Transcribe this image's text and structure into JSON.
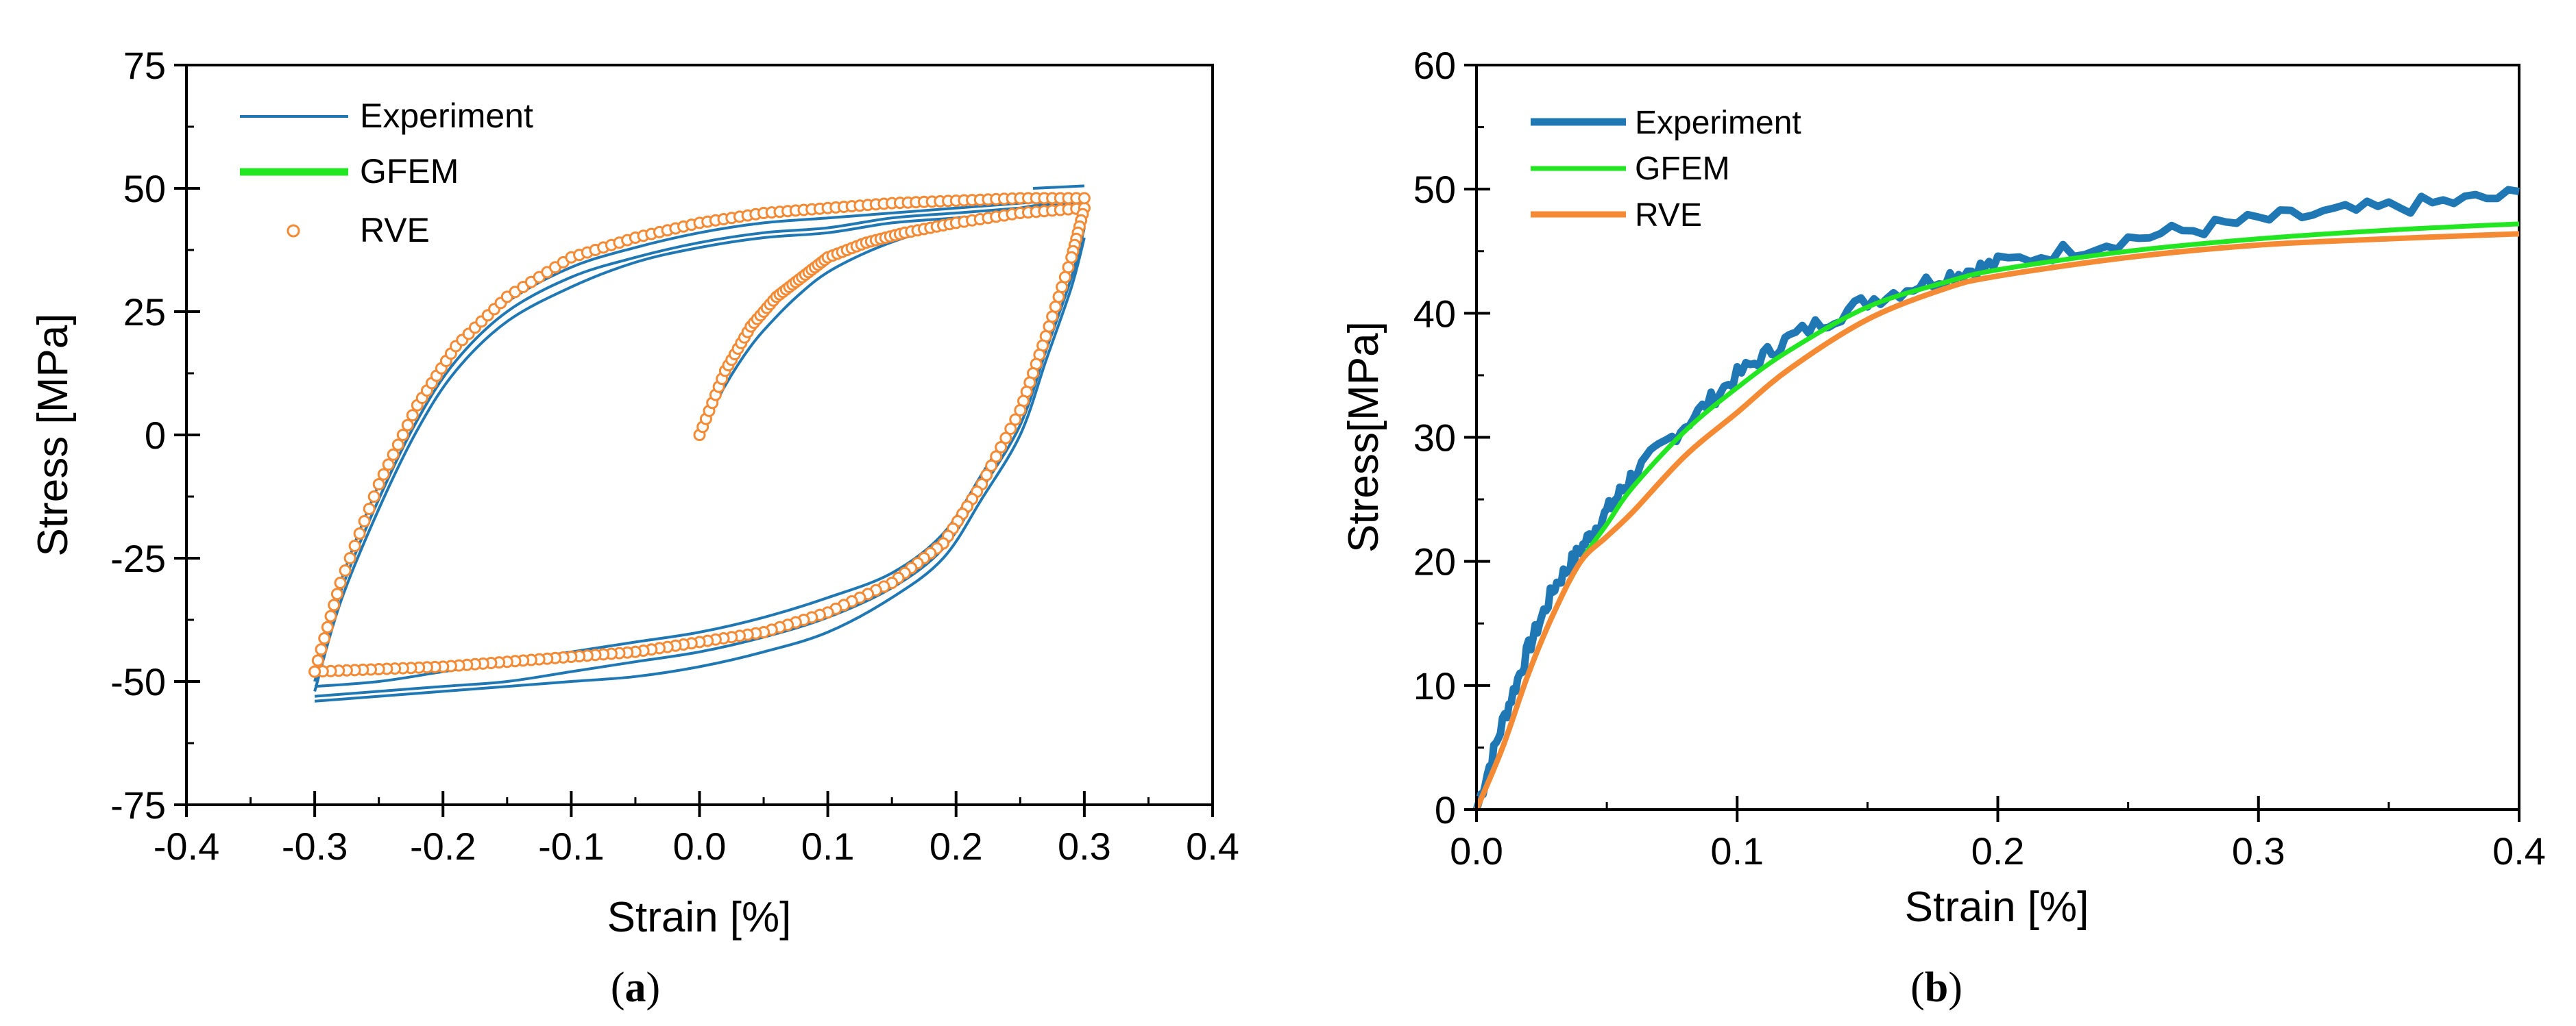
{
  "colors": {
    "experiment": "#1f77b4",
    "gfem": "#22e622",
    "rve": "#f58a35",
    "axis": "#000000",
    "background": "#ffffff"
  },
  "chart_data": [
    {
      "id": "a",
      "type": "line",
      "caption": "(a)",
      "caption_letter": "a",
      "xlabel": "Strain [%]",
      "ylabel": "Stress [MPa]",
      "xlim": [
        -0.4,
        0.4
      ],
      "ylim": [
        -75,
        75
      ],
      "xticks": [
        -0.4,
        -0.3,
        -0.2,
        -0.1,
        0.0,
        0.1,
        0.2,
        0.3,
        0.4
      ],
      "xtick_labels": [
        "-0.4",
        "-0.3",
        "-0.2",
        "-0.1",
        "0.0",
        "0.1",
        "0.2",
        "0.3",
        "0.4"
      ],
      "yticks": [
        -75,
        -50,
        -25,
        0,
        25,
        50,
        75
      ],
      "ytick_labels": [
        "-75",
        "-50",
        "-25",
        "0",
        "25",
        "50",
        "75"
      ],
      "legend": [
        "Experiment",
        "GFEM",
        "RVE"
      ],
      "legend_position": "top-left",
      "series": [
        {
          "name": "Experiment",
          "style": "thin-lines",
          "curves": [
            {
              "x": [
                0,
                0.02,
                0.04,
                0.06,
                0.08,
                0.1,
                0.13,
                0.16,
                0.2,
                0.25,
                0.3
              ],
              "y": [
                0,
                10,
                18,
                24,
                29,
                33,
                37,
                40,
                43,
                46,
                48
              ]
            },
            {
              "x": [
                0.3,
                0.29,
                0.27,
                0.25,
                0.22,
                0.19,
                0.15,
                0.1,
                0.05,
                0.0,
                -0.05,
                -0.1,
                -0.15,
                -0.2,
                -0.25,
                -0.3
              ],
              "y": [
                44,
                35,
                20,
                5,
                -8,
                -20,
                -28,
                -33,
                -37,
                -40,
                -42,
                -44,
                -46,
                -48,
                -50,
                -51
              ]
            },
            {
              "x": [
                0.3,
                0.29,
                0.27,
                0.25,
                0.22,
                0.19,
                0.15,
                0.1,
                0.05,
                0.0,
                -0.05,
                -0.1,
                -0.15,
                -0.2,
                -0.25,
                -0.3
              ],
              "y": [
                42,
                32,
                17,
                2,
                -11,
                -23,
                -31,
                -37,
                -41,
                -44,
                -46,
                -48,
                -50,
                -51,
                -52,
                -53
              ]
            },
            {
              "x": [
                0.3,
                0.29,
                0.27,
                0.25,
                0.22,
                0.19,
                0.15,
                0.1,
                0.05,
                0.0,
                -0.05,
                -0.1,
                -0.15,
                -0.2,
                -0.25,
                -0.3
              ],
              "y": [
                40,
                30,
                15,
                0,
                -13,
                -25,
                -33,
                -40,
                -44,
                -47,
                -49,
                -50,
                -51,
                -52,
                -53,
                -54
              ]
            },
            {
              "x": [
                -0.3,
                -0.28,
                -0.25,
                -0.22,
                -0.19,
                -0.15,
                -0.1,
                -0.05,
                0.0,
                0.05,
                0.1,
                0.15,
                0.2,
                0.25,
                0.3
              ],
              "y": [
                -48,
                -30,
                -10,
                6,
                18,
                27,
                34,
                38,
                41,
                43,
                44,
                45,
                46,
                47,
                48
              ]
            },
            {
              "x": [
                -0.3,
                -0.28,
                -0.25,
                -0.22,
                -0.19,
                -0.15,
                -0.1,
                -0.05,
                0.0,
                0.05,
                0.1,
                0.15,
                0.2,
                0.25,
                0.3
              ],
              "y": [
                -50,
                -32,
                -13,
                3,
                15,
                25,
                32,
                36,
                39,
                41,
                42,
                44,
                45,
                46,
                47
              ]
            },
            {
              "x": [
                -0.3,
                -0.28,
                -0.25,
                -0.22,
                -0.19,
                -0.15,
                -0.1,
                -0.05,
                0.0,
                0.05,
                0.1,
                0.15,
                0.2,
                0.25,
                0.3
              ],
              "y": [
                -52,
                -34,
                -15,
                1,
                13,
                23,
                30,
                35,
                38,
                40,
                41,
                43,
                44,
                45,
                46
              ]
            },
            {
              "x": [
                0.26,
                0.3
              ],
              "y": [
                50,
                50.5
              ]
            }
          ]
        },
        {
          "name": "GFEM",
          "style": "thick-line",
          "curves": []
        },
        {
          "name": "RVE",
          "style": "open-circles",
          "curves": [
            {
              "x": [
                0,
                0.02,
                0.04,
                0.06,
                0.08,
                0.1,
                0.13,
                0.16,
                0.2,
                0.25,
                0.3
              ],
              "y": [
                0,
                13,
                22,
                28,
                32,
                36,
                39,
                41,
                43,
                45,
                46
              ]
            },
            {
              "x": [
                0.3,
                0.29,
                0.27,
                0.25,
                0.22,
                0.19,
                0.15,
                0.1,
                0.05,
                0.0,
                -0.05,
                -0.1,
                -0.15,
                -0.2,
                -0.25,
                -0.3
              ],
              "y": [
                46,
                36,
                20,
                5,
                -10,
                -22,
                -30,
                -36,
                -40,
                -42,
                -44,
                -45,
                -46,
                -47,
                -47.5,
                -48
              ]
            },
            {
              "x": [
                -0.3,
                -0.28,
                -0.25,
                -0.22,
                -0.19,
                -0.15,
                -0.1,
                -0.05,
                0.0,
                0.05,
                0.1,
                0.15,
                0.2,
                0.25,
                0.3
              ],
              "y": [
                -48,
                -30,
                -10,
                6,
                18,
                28,
                36,
                40,
                43,
                45,
                46,
                47,
                47.5,
                48,
                48
              ]
            }
          ]
        }
      ]
    },
    {
      "id": "b",
      "type": "line",
      "caption": "(b)",
      "caption_letter": "b",
      "xlabel": "Strain [%]",
      "ylabel": "Stress[MPa]",
      "xlim": [
        0.0,
        0.4
      ],
      "ylim": [
        0,
        60
      ],
      "xticks": [
        0.0,
        0.1,
        0.2,
        0.3,
        0.4
      ],
      "xtick_labels": [
        "0.0",
        "0.1",
        "0.2",
        "0.3",
        "0.4"
      ],
      "yticks": [
        0,
        10,
        20,
        30,
        40,
        50,
        60
      ],
      "ytick_labels": [
        "0",
        "10",
        "20",
        "30",
        "40",
        "50",
        "60"
      ],
      "legend": [
        "Experiment",
        "GFEM",
        "RVE"
      ],
      "legend_position": "top-left",
      "series": [
        {
          "name": "Experiment",
          "style": "thick-noisy-line",
          "x": [
            0,
            0.01,
            0.02,
            0.03,
            0.04,
            0.05,
            0.06,
            0.08,
            0.1,
            0.12,
            0.15,
            0.18,
            0.2,
            0.25,
            0.3,
            0.35,
            0.4
          ],
          "y": [
            0,
            7,
            13,
            18,
            21,
            24,
            27,
            31,
            35,
            38,
            41,
            43,
            44,
            46,
            47.5,
            48.5,
            49.5
          ]
        },
        {
          "name": "GFEM",
          "style": "line",
          "x": [
            0,
            0.01,
            0.02,
            0.03,
            0.04,
            0.05,
            0.06,
            0.08,
            0.1,
            0.12,
            0.15,
            0.18,
            0.2,
            0.25,
            0.3,
            0.35,
            0.4
          ],
          "y": [
            0,
            5,
            11,
            16,
            20,
            23,
            26,
            30.5,
            34,
            37,
            40.5,
            42.5,
            43.5,
            45,
            46,
            46.7,
            47.2
          ]
        },
        {
          "name": "RVE",
          "style": "line",
          "x": [
            0,
            0.01,
            0.02,
            0.03,
            0.04,
            0.05,
            0.06,
            0.08,
            0.1,
            0.12,
            0.15,
            0.18,
            0.2,
            0.25,
            0.3,
            0.35,
            0.4
          ],
          "y": [
            0,
            5,
            11,
            16,
            20,
            22,
            24,
            28.5,
            32,
            35.5,
            39.5,
            42,
            43,
            44.5,
            45.5,
            46,
            46.4
          ]
        }
      ]
    }
  ]
}
